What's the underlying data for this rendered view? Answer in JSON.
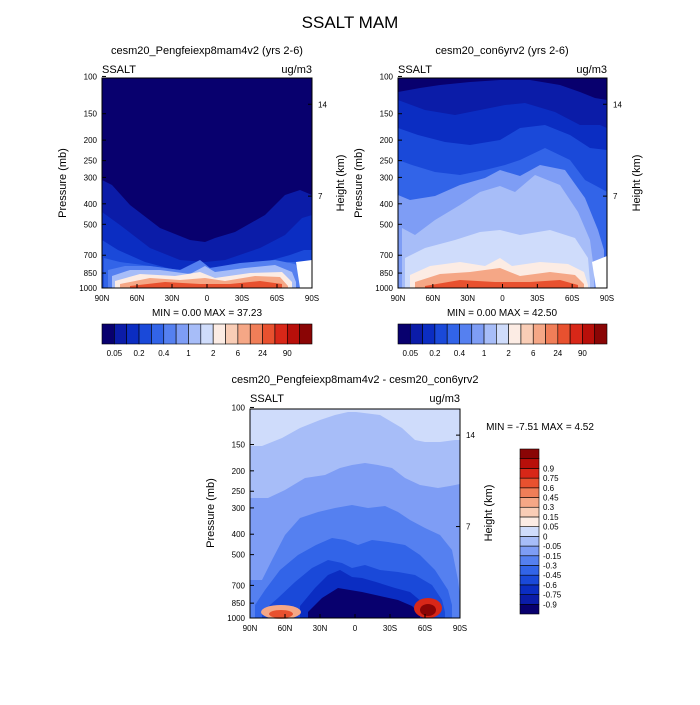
{
  "page_title": "SSALT MAM",
  "colorbar_abs": {
    "colors": [
      "#08006e",
      "#0b1ca8",
      "#0b2dc2",
      "#1a49d9",
      "#3264e8",
      "#5580f0",
      "#7e9df5",
      "#a7bdf8",
      "#cfdcfb",
      "#fcece4",
      "#f9cdb6",
      "#f5a786",
      "#f07e58",
      "#e8512f",
      "#d82718",
      "#b80f0a",
      "#8a0505"
    ],
    "labels": [
      "0.05",
      "0.2",
      "0.4",
      "1",
      "2",
      "6",
      "24",
      "90"
    ]
  },
  "colorbar_diff": {
    "colors": [
      "#08006e",
      "#0b1ca8",
      "#0b2dc2",
      "#1a49d9",
      "#3264e8",
      "#5580f0",
      "#7e9df5",
      "#a7bdf8",
      "#cfdcfb",
      "#fcece4",
      "#f9cdb6",
      "#f5a786",
      "#f07e58",
      "#e8512f",
      "#d82718",
      "#b80f0a",
      "#8a0505"
    ],
    "labels": [
      "-0.9",
      "-0.75",
      "-0.6",
      "-0.45",
      "-0.3",
      "-0.15",
      "-0.05",
      "0",
      "0.05",
      "0.15",
      "0.3",
      "0.45",
      "0.6",
      "0.75",
      "0.9"
    ]
  },
  "panels": [
    {
      "title": "cesm20_Pengfeiexp8mam4v2 (yrs 2-6)",
      "left_label": "SSALT",
      "right_label": "ug/m3",
      "ylabel": "Pressure (mb)",
      "ylabel_right": "Height (km)",
      "minmax_text": "MIN =  0.00  MAX = 37.23"
    },
    {
      "title": "cesm20_con6yrv2 (yrs 2-6)",
      "left_label": "SSALT",
      "right_label": "ug/m3",
      "ylabel": "Pressure (mb)",
      "ylabel_right": "Height (km)",
      "minmax_text": "MIN =  0.00  MAX = 42.50"
    },
    {
      "title": "cesm20_Pengfeiexp8mam4v2 - cesm20_con6yrv2",
      "left_label": "SSALT",
      "right_label": "ug/m3",
      "ylabel": "Pressure (mb)",
      "ylabel_right": "Height (km)",
      "minmax_text": "MIN = -7.51  MAX =  4.52"
    }
  ],
  "chart_data": [
    {
      "type": "heatmap",
      "title": "cesm20_Pengfeiexp8mam4v2 (yrs 2-6)",
      "xlabel": "",
      "ylabel": "Pressure (mb)",
      "ylabel_right": "Height (km)",
      "x_ticks": [
        "90N",
        "60N",
        "30N",
        "0",
        "30S",
        "60S",
        "90S"
      ],
      "y_ticks": [
        "100",
        "150",
        "200",
        "250",
        "300",
        "400",
        "500",
        "700",
        "850",
        "1000"
      ],
      "y_right_ticks": [
        "14",
        "7"
      ],
      "units": "ug/m3",
      "min": 0.0,
      "max": 37.23
    },
    {
      "type": "heatmap",
      "title": "cesm20_con6yrv2 (yrs 2-6)",
      "xlabel": "",
      "ylabel": "Pressure (mb)",
      "ylabel_right": "Height (km)",
      "x_ticks": [
        "90N",
        "60N",
        "30N",
        "0",
        "30S",
        "60S",
        "90S"
      ],
      "y_ticks": [
        "100",
        "150",
        "200",
        "250",
        "300",
        "400",
        "500",
        "700",
        "850",
        "1000"
      ],
      "y_right_ticks": [
        "14",
        "7"
      ],
      "units": "ug/m3",
      "min": 0.0,
      "max": 42.5
    },
    {
      "type": "heatmap",
      "title": "cesm20_Pengfeiexp8mam4v2 - cesm20_con6yrv2",
      "xlabel": "",
      "ylabel": "Pressure (mb)",
      "ylabel_right": "Height (km)",
      "x_ticks": [
        "90N",
        "60N",
        "30N",
        "0",
        "30S",
        "60S",
        "90S"
      ],
      "y_ticks": [
        "100",
        "150",
        "200",
        "250",
        "300",
        "400",
        "500",
        "700",
        "850",
        "1000"
      ],
      "y_right_ticks": [
        "14",
        "7"
      ],
      "units": "ug/m3",
      "min": -7.51,
      "max": 4.52
    }
  ]
}
